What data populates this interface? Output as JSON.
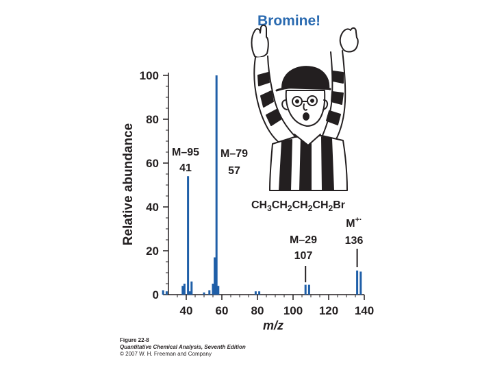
{
  "colors": {
    "bar": "#1f5fa8",
    "title": "#2a6ab0",
    "text": "#231f20"
  },
  "caption": {
    "figure": "Figure 22-8",
    "book": "Quantitative Chemical Analysis, Seventh Edition",
    "copyright": "© 2007 W. H. Freeman and Company"
  },
  "illustration": {
    "name": "referee-cartoon-signaling-touchdown"
  },
  "chart_data": {
    "type": "bar",
    "title": "Bromine!",
    "formula": {
      "parts": [
        "CH",
        "3",
        "CH",
        "2",
        "CH",
        "2",
        "CH",
        "2",
        "Br"
      ]
    },
    "xlabel": "m/z",
    "ylabel": "Relative abundance",
    "xlim": [
      30,
      140
    ],
    "ylim": [
      0,
      100
    ],
    "x_ticks": [
      40,
      60,
      80,
      100,
      120,
      140
    ],
    "y_ticks": [
      0,
      20,
      40,
      60,
      80,
      100
    ],
    "series": [
      {
        "points": [
          {
            "x": 27,
            "y": 2
          },
          {
            "x": 29,
            "y": 1.5
          },
          {
            "x": 38,
            "y": 4
          },
          {
            "x": 39,
            "y": 5
          },
          {
            "x": 41,
            "y": 54
          },
          {
            "x": 42,
            "y": 1.5
          },
          {
            "x": 43,
            "y": 6
          },
          {
            "x": 50,
            "y": 1
          },
          {
            "x": 53,
            "y": 2
          },
          {
            "x": 55,
            "y": 5
          },
          {
            "x": 56,
            "y": 17
          },
          {
            "x": 57,
            "y": 100
          },
          {
            "x": 58,
            "y": 4
          },
          {
            "x": 79,
            "y": 1.5
          },
          {
            "x": 81,
            "y": 1.5
          },
          {
            "x": 107,
            "y": 4.5
          },
          {
            "x": 109,
            "y": 4.5
          },
          {
            "x": 136,
            "y": 11
          },
          {
            "x": 138,
            "y": 10.5
          }
        ]
      }
    ],
    "annotations": [
      {
        "label1": "M–95",
        "label2": "41",
        "x": 41
      },
      {
        "label1": "M–79",
        "label2": "57",
        "x": 57
      },
      {
        "label1": "M–29",
        "label2": "107",
        "x": 107
      },
      {
        "label1": "M",
        "sup": "+·",
        "label2": "136",
        "x": 136
      }
    ]
  }
}
